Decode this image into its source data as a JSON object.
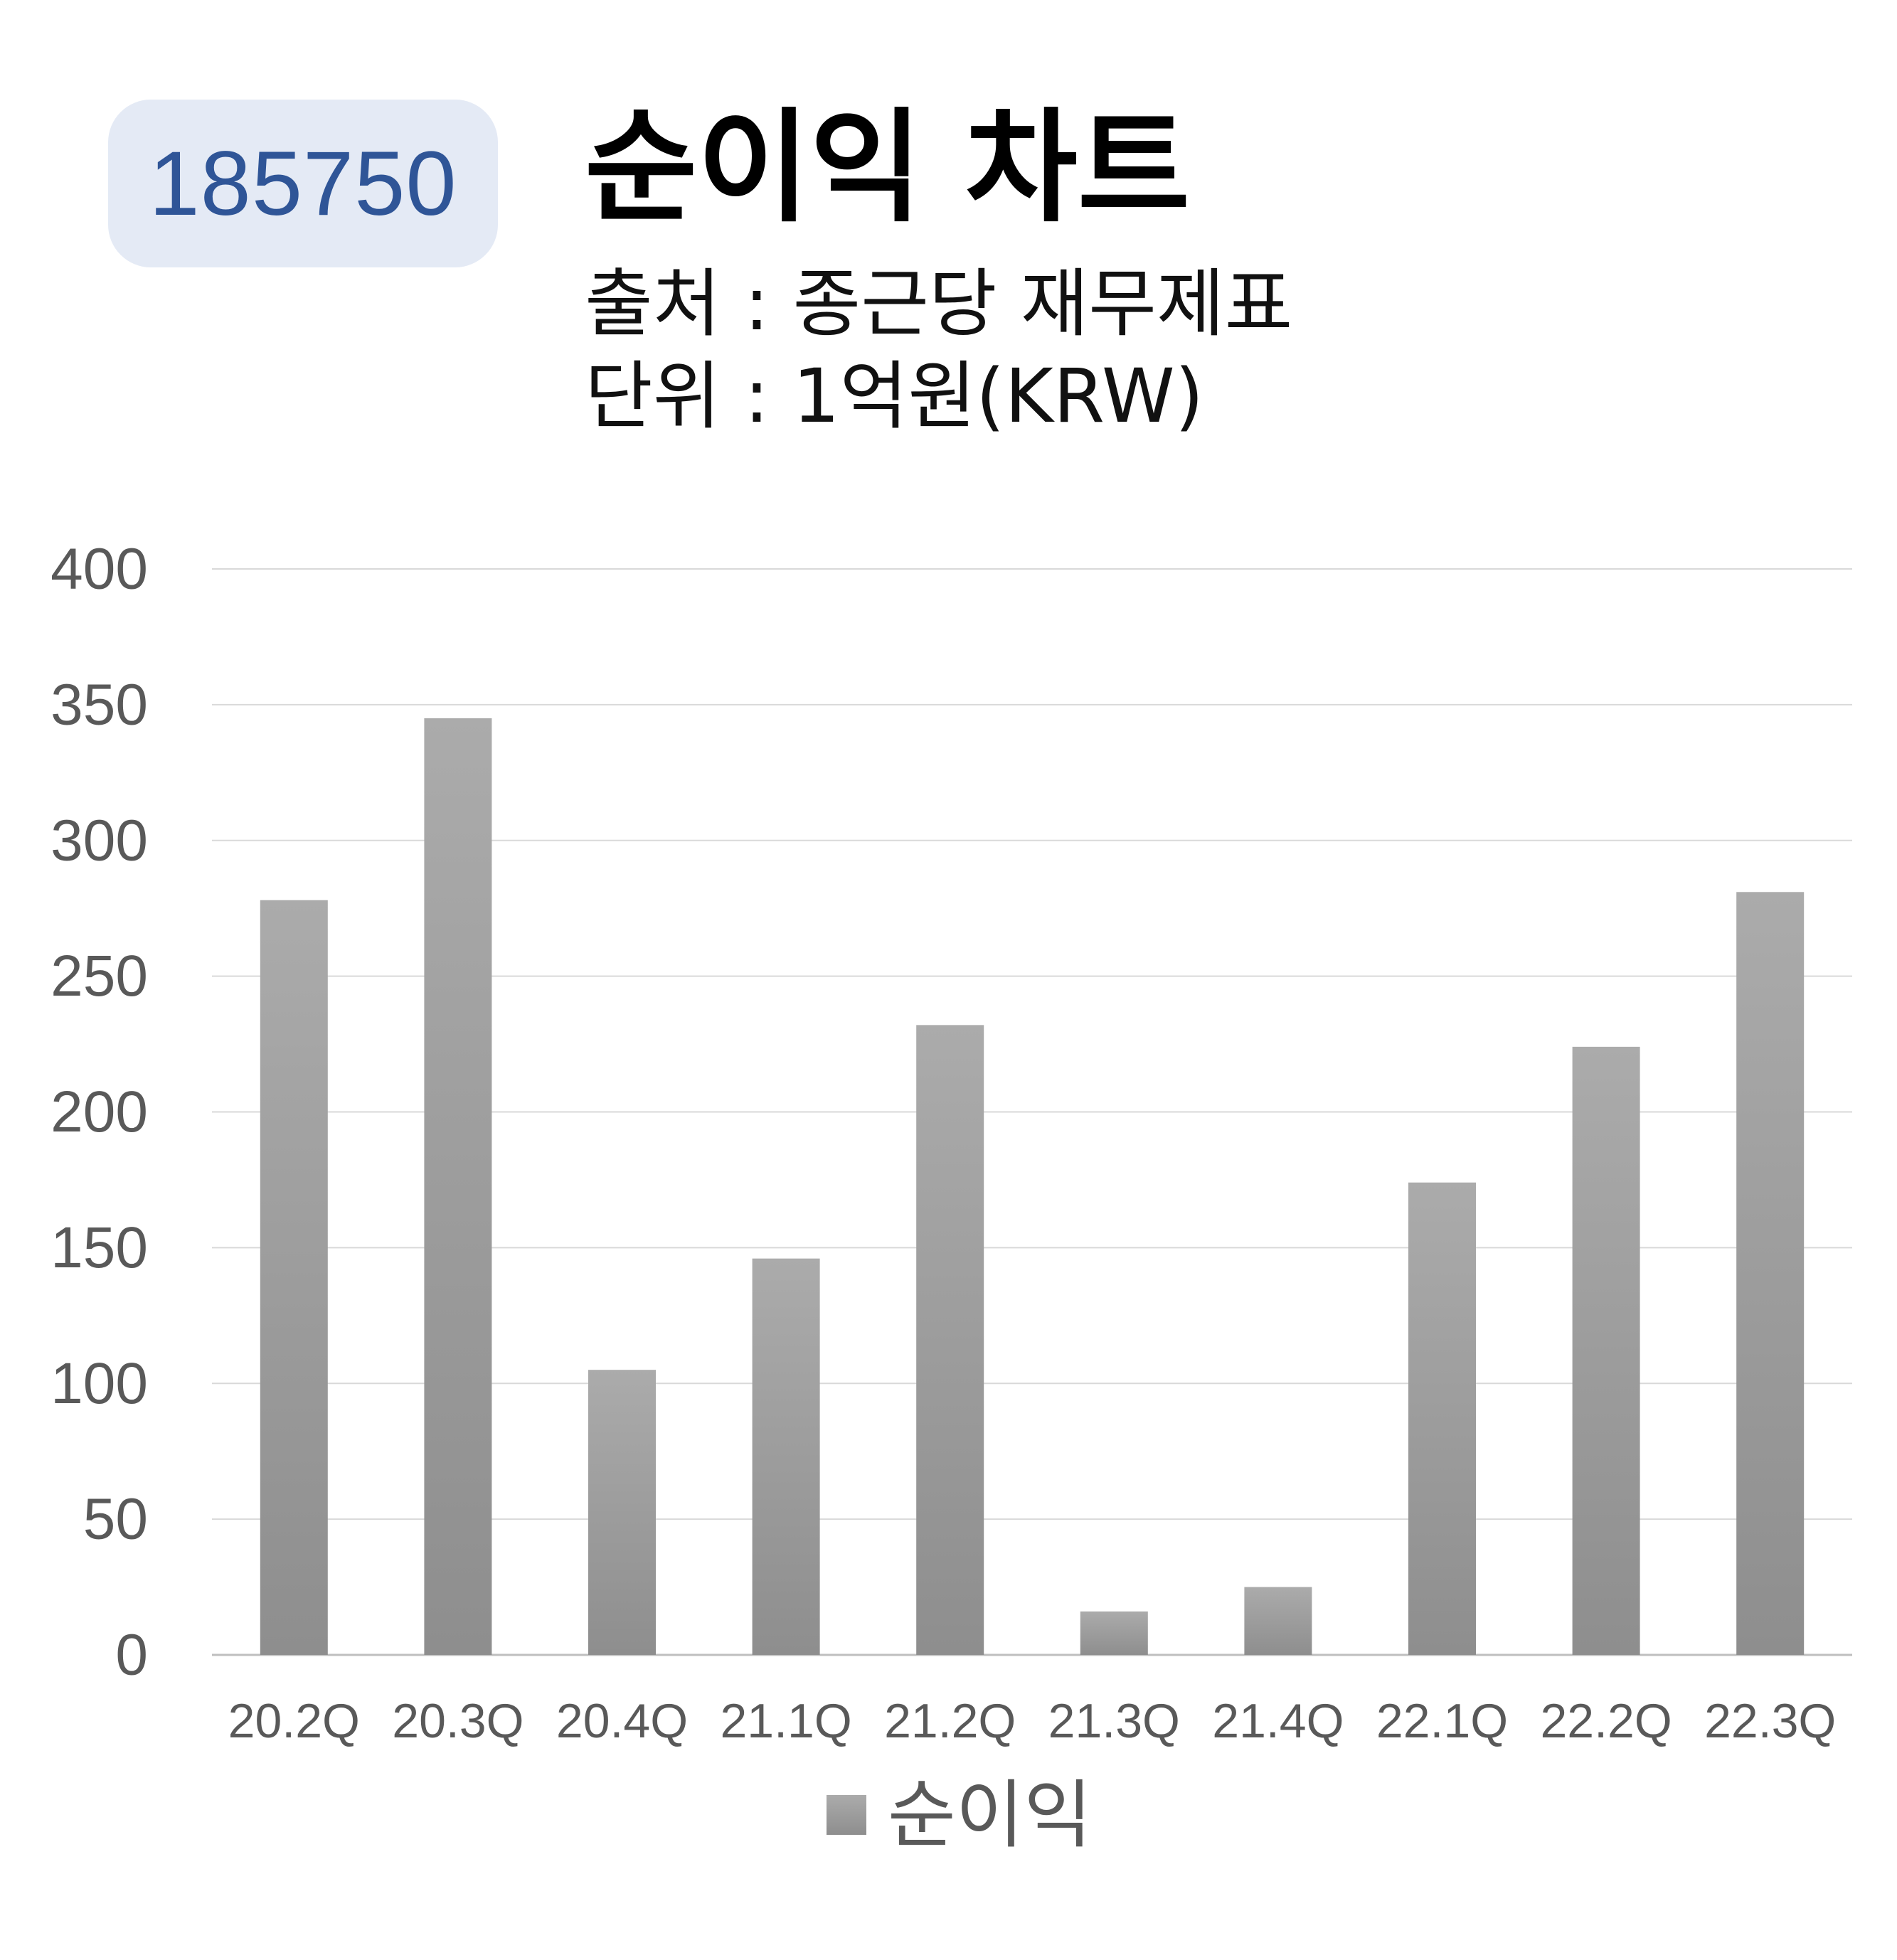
{
  "code_badge": "185750",
  "title": "순이익 차트",
  "source": "출처 : 종근당 재무제표",
  "unit": "단위 : 1억원(KRW)",
  "colors": {
    "badge_bg": "#e4eaf5",
    "badge_text": "#2f5597",
    "bar_top": "#ababab",
    "bar_bottom": "#8e8e8e",
    "grid": "#d9d9d9",
    "tick_text": "#595959"
  },
  "chart_data": {
    "type": "bar",
    "categories": [
      "20.2Q",
      "20.3Q",
      "20.4Q",
      "21.1Q",
      "21.2Q",
      "21.3Q",
      "21.4Q",
      "22.1Q",
      "22.2Q",
      "22.3Q"
    ],
    "series": [
      {
        "name": "순이익",
        "values": [
          278,
          345,
          105,
          146,
          232,
          16,
          25,
          174,
          224,
          281
        ]
      }
    ],
    "ylim": [
      0,
      400
    ],
    "yticks": [
      0,
      50,
      100,
      150,
      200,
      250,
      300,
      350,
      400
    ],
    "grid": true,
    "legend_position": "bottom"
  }
}
